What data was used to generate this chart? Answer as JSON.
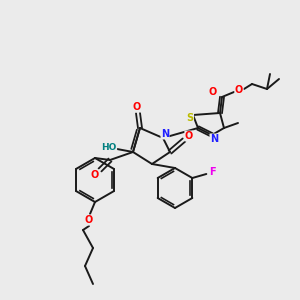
{
  "bg_color": "#ebebeb",
  "bond_color": "#1a1a1a",
  "figsize": [
    3.0,
    3.0
  ],
  "dpi": 100,
  "atom_colors": {
    "O": "#ff0000",
    "N": "#2020ff",
    "S": "#bbbb00",
    "F": "#ee00ee",
    "HO": "#008080",
    "C": "#1a1a1a"
  }
}
